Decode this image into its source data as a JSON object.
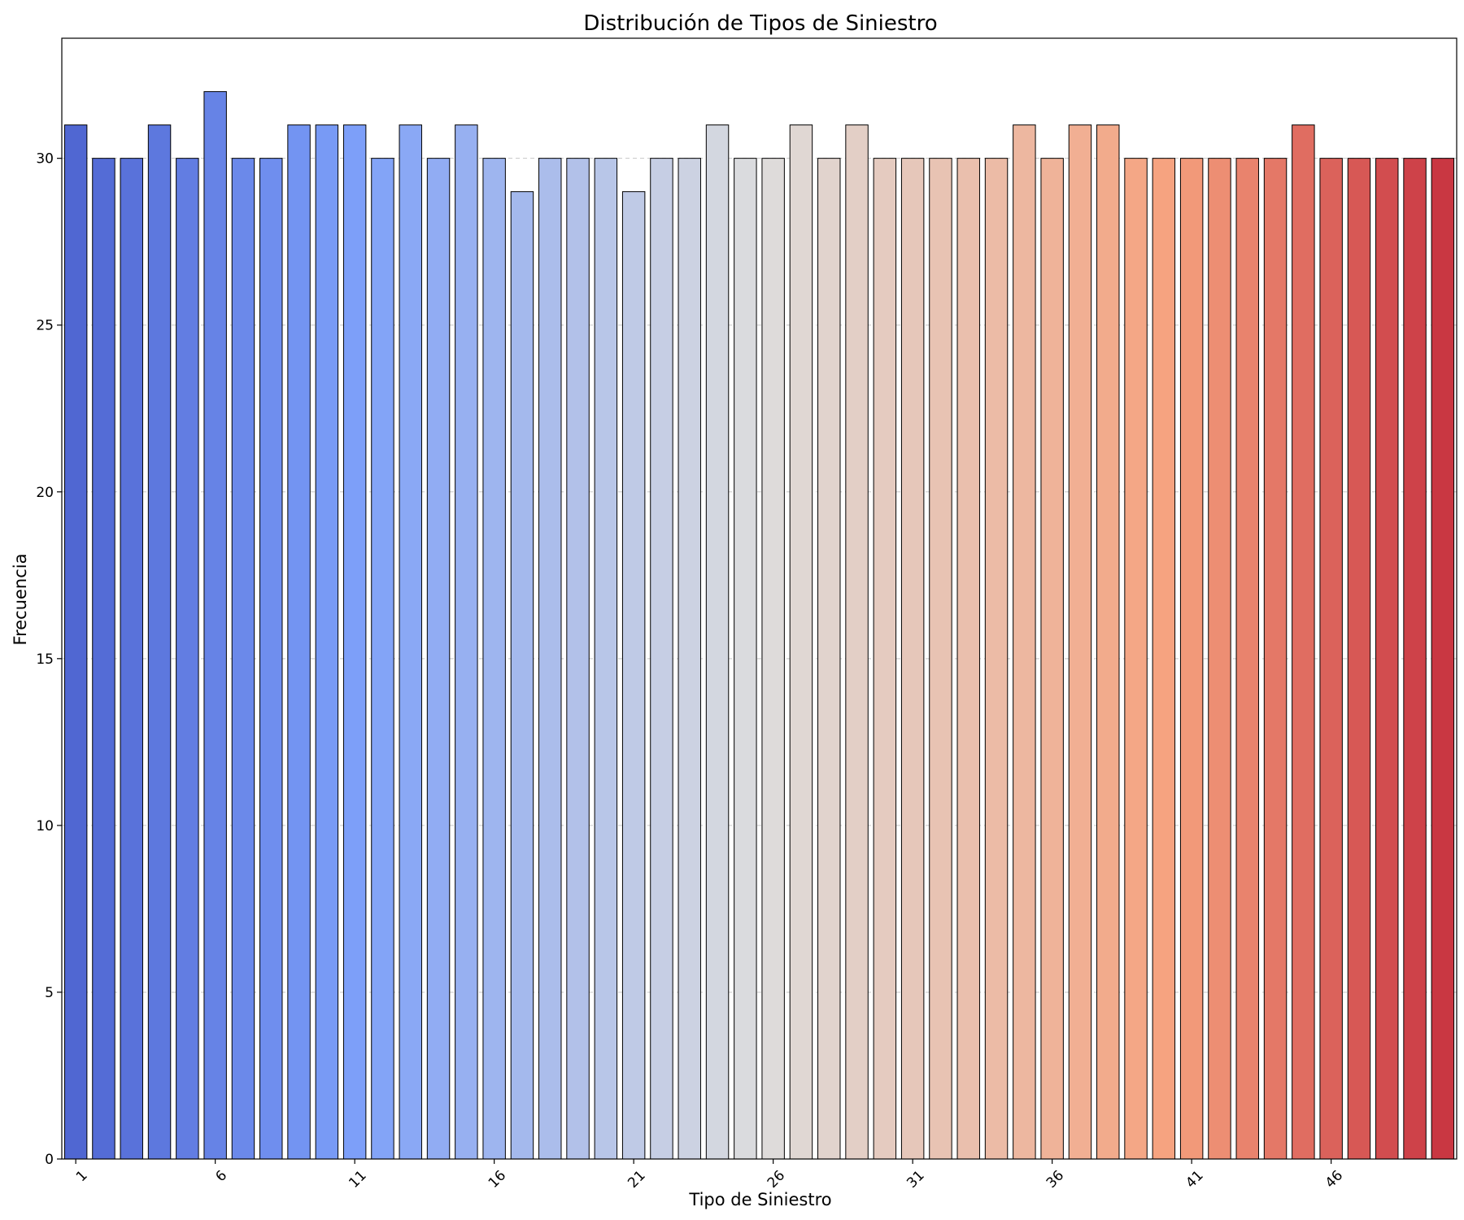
{
  "chart_data": {
    "type": "bar",
    "title": "Distribución de Tipos de Siniestro",
    "xlabel": "Tipo de Siniestro",
    "ylabel": "Frecuencia",
    "categories": [
      1,
      2,
      3,
      4,
      5,
      6,
      7,
      8,
      9,
      10,
      11,
      12,
      13,
      14,
      15,
      16,
      17,
      18,
      19,
      20,
      21,
      22,
      23,
      24,
      25,
      26,
      27,
      28,
      29,
      30,
      31,
      32,
      33,
      34,
      35,
      36,
      37,
      38,
      39,
      40,
      41,
      42,
      43,
      44,
      45,
      46,
      47,
      48,
      49,
      50
    ],
    "values": [
      31,
      30,
      30,
      31,
      30,
      32,
      30,
      30,
      31,
      31,
      31,
      30,
      31,
      30,
      31,
      30,
      29,
      30,
      30,
      30,
      29,
      30,
      30,
      31,
      30,
      30,
      31,
      30,
      31,
      30,
      30,
      30,
      30,
      30,
      31,
      30,
      31,
      31,
      30,
      30,
      30,
      30,
      30,
      30,
      31,
      30,
      30,
      30,
      30,
      30
    ],
    "ylim": [
      0,
      33.6
    ],
    "yticks": [
      0,
      5,
      10,
      15,
      20,
      25,
      30
    ],
    "xtick_labels": [
      "1",
      "6",
      "11",
      "16",
      "21",
      "26",
      "31",
      "36",
      "41",
      "46"
    ],
    "xtick_rotation": 45,
    "grid": "y-dashed",
    "colormap": "coolwarm",
    "bar_edge_color": "#000000"
  }
}
